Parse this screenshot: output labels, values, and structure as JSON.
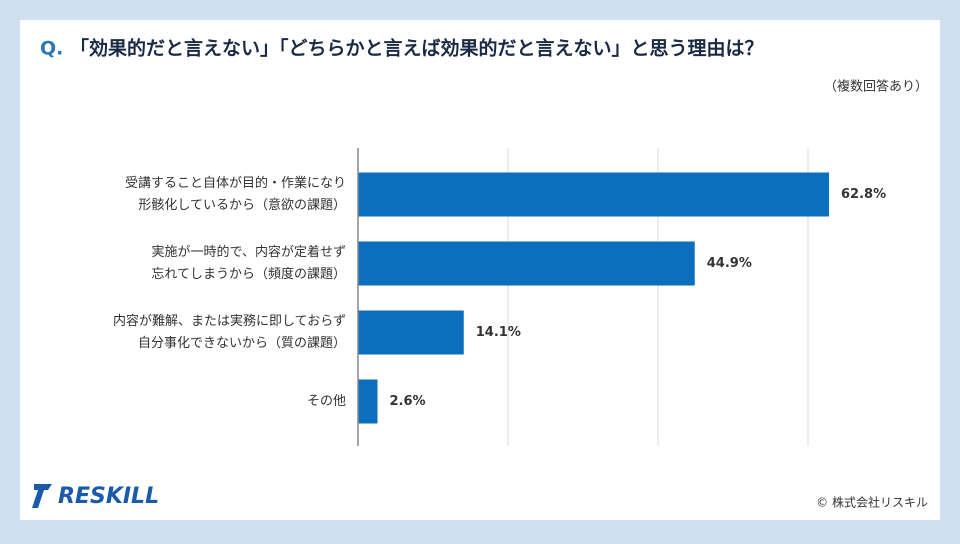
{
  "header": {
    "q_mark": "Q.",
    "title": "「効果的だと言えない」「どちらかと言えば効果的だと言えない」と思う理由は？",
    "note": "（複数回答あり）"
  },
  "chart_data": {
    "type": "bar",
    "orientation": "horizontal",
    "categories": [
      [
        "受講すること自体が目的・作業になり",
        "形骸化しているから（意欲の課題）"
      ],
      [
        "実施が一時的で、内容が定着せず",
        "忘れてしまうから（頻度の課題）"
      ],
      [
        "内容が難解、または実務に即しておらず",
        "自分事化できないから（質の課題）"
      ],
      [
        "その他"
      ]
    ],
    "values": [
      62.8,
      44.9,
      14.1,
      2.6
    ],
    "value_labels": [
      "62.8%",
      "44.9%",
      "14.1%",
      "2.6%"
    ],
    "color": "#0b6fbd",
    "xlim": [
      0,
      70
    ],
    "xticks": [
      0,
      20,
      40,
      60
    ],
    "grid": true
  },
  "footer": {
    "logo": "RESKILL",
    "copyright": "© 株式会社リスキル"
  }
}
